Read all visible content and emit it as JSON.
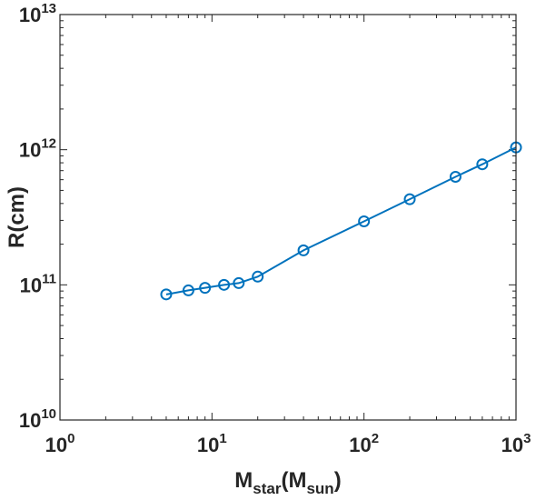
{
  "chart_data": {
    "type": "line",
    "scale": "log-log",
    "xlabel": {
      "main": "M",
      "sub": "star",
      "mid": "(M",
      "sub2": "sun",
      "end": ")"
    },
    "ylabel": "R(cm)",
    "xlim": [
      1,
      1000
    ],
    "ylim": [
      10000000000,
      10000000000000
    ],
    "x_ticks": [
      {
        "base": "10",
        "exp": "0"
      },
      {
        "base": "10",
        "exp": "1"
      },
      {
        "base": "10",
        "exp": "2"
      },
      {
        "base": "10",
        "exp": "3"
      }
    ],
    "y_ticks": [
      {
        "base": "10",
        "exp": "10"
      },
      {
        "base": "10",
        "exp": "11"
      },
      {
        "base": "10",
        "exp": "12"
      },
      {
        "base": "10",
        "exp": "13"
      }
    ],
    "grid": false,
    "series": [
      {
        "color": "#0072BD",
        "marker": "circle",
        "x": [
          5,
          7,
          9,
          12,
          15,
          20,
          40,
          100,
          200,
          400,
          600,
          1000
        ],
        "y": [
          85000000000,
          91000000000,
          95000000000,
          100000000000,
          103000000000,
          115000000000,
          180000000000,
          295000000000,
          430000000000,
          630000000000,
          780000000000,
          1040000000000
        ]
      }
    ]
  }
}
